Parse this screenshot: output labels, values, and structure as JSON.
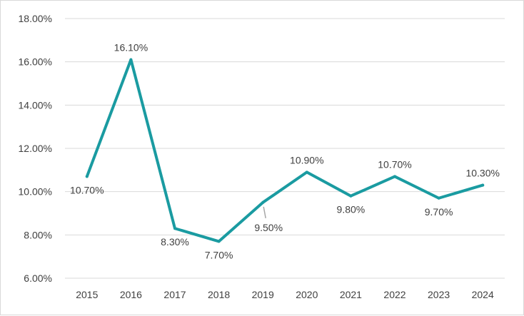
{
  "chart_data": {
    "type": "line",
    "title": "",
    "xlabel": "",
    "ylabel": "",
    "categories": [
      "2015",
      "2016",
      "2017",
      "2018",
      "2019",
      "2020",
      "2021",
      "2022",
      "2023",
      "2024"
    ],
    "series": [
      {
        "values": [
          10.7,
          16.1,
          8.3,
          7.7,
          9.5,
          10.9,
          9.8,
          10.7,
          9.7,
          10.3
        ],
        "labels": [
          "10.70%",
          "16.10%",
          "8.30%",
          "7.70%",
          "9.50%",
          "10.90%",
          "9.80%",
          "10.70%",
          "9.70%",
          "10.30%"
        ],
        "label_positions": [
          "below",
          "above",
          "below",
          "below",
          "below",
          "above",
          "below",
          "above",
          "below",
          "above"
        ],
        "color": "#1a9ba1"
      }
    ],
    "ylim": [
      6,
      18
    ],
    "yticks": [
      6,
      8,
      10,
      12,
      14,
      16,
      18
    ],
    "ytick_labels": [
      "6.00%",
      "8.00%",
      "10.00%",
      "12.00%",
      "14.00%",
      "16.00%",
      "18.00%"
    ],
    "grid": true,
    "legend": "none",
    "gridline_color": "#d9d9d9",
    "label_leader_color": "#a6a6a6"
  }
}
